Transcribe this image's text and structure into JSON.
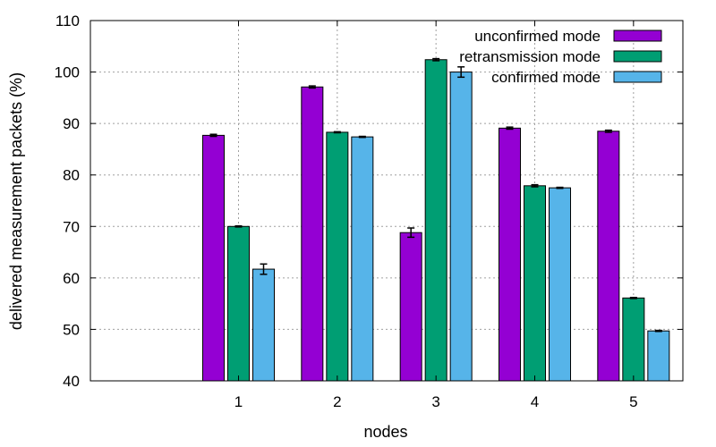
{
  "chart_data": {
    "type": "bar",
    "title": "",
    "xlabel": "nodes",
    "ylabel": "delivered measurement packets (%)",
    "categories": [
      "1",
      "2",
      "3",
      "4",
      "5"
    ],
    "ylim": [
      40,
      110
    ],
    "yticks": [
      40,
      50,
      60,
      70,
      80,
      90,
      100,
      110
    ],
    "grid": true,
    "legend_position": "top-right",
    "series": [
      {
        "name": "unconfirmed mode",
        "color": "#9400d3",
        "values": [
          87.7,
          97.1,
          68.8,
          89.1,
          88.5
        ],
        "errors": [
          0.2,
          0.2,
          0.9,
          0.2,
          0.2
        ]
      },
      {
        "name": "retransmission mode",
        "color": "#009e73",
        "values": [
          70.0,
          88.3,
          102.4,
          77.9,
          56.1
        ],
        "errors": [
          0.1,
          0.1,
          0.2,
          0.2,
          0.1
        ]
      },
      {
        "name": "confirmed mode",
        "color": "#56b4e9",
        "values": [
          61.7,
          87.4,
          100.0,
          77.5,
          49.7
        ],
        "errors": [
          1.0,
          0.1,
          1.0,
          0.1,
          0.1
        ]
      }
    ]
  }
}
